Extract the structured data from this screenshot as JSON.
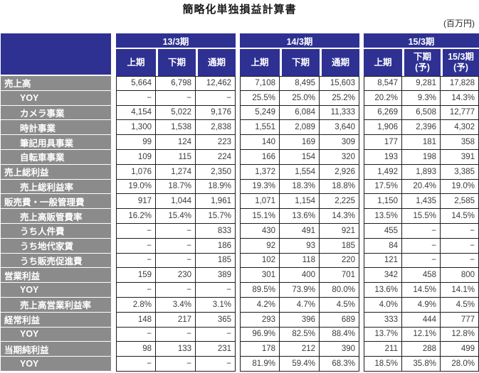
{
  "page": {
    "title": "簡略化単独損益計算書",
    "unit_label": "(百万円)"
  },
  "colors": {
    "header_bg": "#2e3192",
    "row_header_bg": "#8b8b8b",
    "data_border": "#1c1c1c",
    "data_text": "#3b3b3b",
    "header_text": "#ffffff"
  },
  "table": {
    "period_groups": [
      {
        "label": "13/3期",
        "cols": [
          "上期",
          "下期",
          "通期"
        ]
      },
      {
        "label": "14/3期",
        "cols": [
          "上期",
          "下期",
          "通期"
        ]
      },
      {
        "label": "15/3期",
        "cols": [
          "上期",
          "下期\n(予)",
          "15/3期\n(予)"
        ]
      }
    ],
    "rows": [
      {
        "label": "売上高",
        "indent": false,
        "values": [
          "5,664",
          "6,798",
          "12,462",
          "7,108",
          "8,495",
          "15,603",
          "8,547",
          "9,281",
          "17,828"
        ]
      },
      {
        "label": "YOY",
        "indent": true,
        "values": [
          "−",
          "−",
          "−",
          "25.5%",
          "25.0%",
          "25.2%",
          "20.2%",
          "9.3%",
          "14.3%"
        ]
      },
      {
        "label": "カメラ事業",
        "indent": true,
        "values": [
          "4,154",
          "5,022",
          "9,176",
          "5,249",
          "6,084",
          "11,333",
          "6,269",
          "6,508",
          "12,777"
        ]
      },
      {
        "label": "時計事業",
        "indent": true,
        "values": [
          "1,300",
          "1,538",
          "2,838",
          "1,551",
          "2,089",
          "3,640",
          "1,906",
          "2,396",
          "4,302"
        ]
      },
      {
        "label": "筆記用具事業",
        "indent": true,
        "values": [
          "99",
          "124",
          "223",
          "140",
          "169",
          "309",
          "177",
          "181",
          "358"
        ]
      },
      {
        "label": "自転車事業",
        "indent": true,
        "values": [
          "109",
          "115",
          "224",
          "166",
          "154",
          "320",
          "193",
          "198",
          "391"
        ]
      },
      {
        "label": "売上総利益",
        "indent": false,
        "values": [
          "1,076",
          "1,274",
          "2,350",
          "1,372",
          "1,554",
          "2,926",
          "1,492",
          "1,893",
          "3,385"
        ]
      },
      {
        "label": "売上総利益率",
        "indent": true,
        "values": [
          "19.0%",
          "18.7%",
          "18.9%",
          "19.3%",
          "18.3%",
          "18.8%",
          "17.5%",
          "20.4%",
          "19.0%"
        ]
      },
      {
        "label": "販売費・一般管理費",
        "indent": false,
        "values": [
          "917",
          "1,044",
          "1,961",
          "1,071",
          "1,154",
          "2,225",
          "1,150",
          "1,435",
          "2,585"
        ]
      },
      {
        "label": "売上高販管費率",
        "indent": true,
        "values": [
          "16.2%",
          "15.4%",
          "15.7%",
          "15.1%",
          "13.6%",
          "14.3%",
          "13.5%",
          "15.5%",
          "14.5%"
        ]
      },
      {
        "label": "うち人件費",
        "indent": true,
        "values": [
          "−",
          "−",
          "833",
          "430",
          "491",
          "921",
          "455",
          "−",
          "−"
        ]
      },
      {
        "label": "うち地代家賃",
        "indent": true,
        "values": [
          "−",
          "−",
          "186",
          "92",
          "93",
          "185",
          "84",
          "−",
          "−"
        ]
      },
      {
        "label": "うち販売促進費",
        "indent": true,
        "values": [
          "−",
          "−",
          "185",
          "102",
          "118",
          "220",
          "121",
          "−",
          "−"
        ]
      },
      {
        "label": "営業利益",
        "indent": false,
        "values": [
          "159",
          "230",
          "389",
          "301",
          "400",
          "701",
          "342",
          "458",
          "800"
        ]
      },
      {
        "label": "YOY",
        "indent": true,
        "values": [
          "−",
          "−",
          "−",
          "89.5%",
          "73.9%",
          "80.0%",
          "13.6%",
          "14.5%",
          "14.1%"
        ]
      },
      {
        "label": "売上高営業利益率",
        "indent": true,
        "values": [
          "2.8%",
          "3.4%",
          "3.1%",
          "4.2%",
          "4.7%",
          "4.5%",
          "4.0%",
          "4.9%",
          "4.5%"
        ]
      },
      {
        "label": "経常利益",
        "indent": false,
        "values": [
          "148",
          "217",
          "365",
          "293",
          "396",
          "689",
          "333",
          "444",
          "777"
        ]
      },
      {
        "label": "YOY",
        "indent": true,
        "values": [
          "−",
          "−",
          "−",
          "96.9%",
          "82.5%",
          "88.4%",
          "13.7%",
          "12.1%",
          "12.8%"
        ]
      },
      {
        "label": "当期純利益",
        "indent": false,
        "values": [
          "98",
          "133",
          "231",
          "178",
          "212",
          "390",
          "211",
          "288",
          "499"
        ]
      },
      {
        "label": "YOY",
        "indent": true,
        "values": [
          "−",
          "−",
          "−",
          "81.9%",
          "59.4%",
          "68.3%",
          "18.5%",
          "35.8%",
          "28.0%"
        ]
      }
    ]
  }
}
